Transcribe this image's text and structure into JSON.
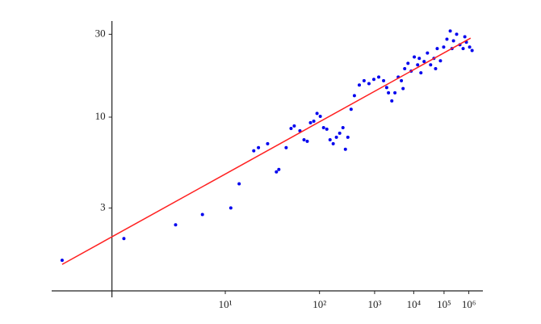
{
  "chart_data": {
    "type": "scatter",
    "xscale": "log-log",
    "yscale": "log",
    "xlim": [
      1.9,
      4500000
    ],
    "ylim": [
      1,
      35
    ],
    "xticks": [
      {
        "value": 10,
        "label": "10¹"
      },
      {
        "value": 100,
        "label": "10²"
      },
      {
        "value": 1000,
        "label": "10³"
      },
      {
        "value": 10000,
        "label": "10⁴"
      },
      {
        "value": 100000,
        "label": "10⁵"
      },
      {
        "value": 1000000,
        "label": "10⁶"
      }
    ],
    "yticks": [
      3,
      10,
      30
    ],
    "series": [
      {
        "type": "scatter",
        "color": "#0000ee",
        "x": [
          2.0,
          2.98,
          4.94,
          7.0,
          11.0,
          12.8,
          17.1,
          18.9,
          23.2,
          28.6,
          30.4,
          36.7,
          41.9,
          45.8,
          53.9,
          60.9,
          67.2,
          74.4,
          82.7,
          92,
          102.7,
          115,
          129,
          145,
          163,
          184,
          209,
          238,
          263,
          291,
          334,
          385,
          479,
          597,
          755,
          962,
          1236,
          1604,
          1900,
          2100,
          2540,
          3045,
          3710,
          4500,
          5000,
          5540,
          6840,
          8440,
          10400,
          13100,
          14700,
          16500,
          20800,
          26600,
          33900,
          43800,
          50000,
          56900,
          74000,
          97000,
          128000,
          171000,
          200000,
          229000,
          306000,
          416000,
          567000,
          670000,
          781000,
          1085000,
          1400000
        ],
        "values": [
          1.5,
          2.0,
          2.4,
          2.75,
          3.0,
          4.13,
          6.4,
          6.67,
          7.03,
          4.84,
          5.0,
          6.67,
          8.61,
          8.9,
          8.34,
          7.41,
          7.26,
          9.29,
          9.48,
          10.5,
          10.1,
          8.7,
          8.53,
          7.41,
          7.03,
          7.66,
          8.08,
          8.7,
          6.53,
          7.66,
          11.1,
          13.3,
          15.3,
          16.2,
          15.6,
          16.5,
          17.0,
          16.2,
          14.8,
          13.8,
          12.4,
          13.8,
          17.0,
          16.2,
          14.6,
          19.0,
          20.4,
          18.4,
          22.2,
          20.0,
          21.8,
          18.0,
          20.9,
          23.4,
          20.0,
          21.8,
          19.0,
          24.8,
          21.1,
          25.3,
          28.1,
          31.3,
          24.8,
          27.5,
          30.0,
          26.1,
          24.8,
          29.0,
          27.0,
          25.3,
          24.2
        ]
      },
      {
        "type": "line",
        "color": "#ff2020",
        "x": [
          2.0,
          1200000
        ],
        "values": [
          1.42,
          28.5
        ]
      }
    ]
  }
}
